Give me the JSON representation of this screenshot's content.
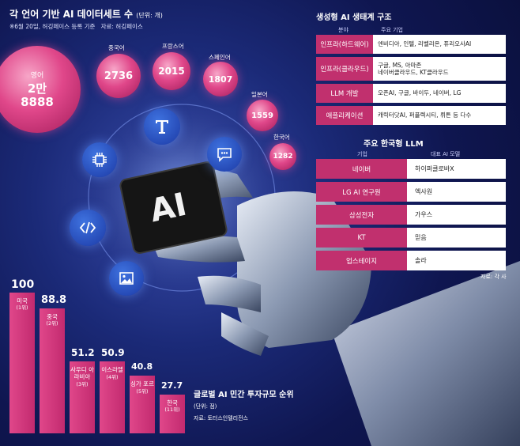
{
  "left_panel": {
    "title": "각 언어 기반 AI 데이터세트 수",
    "unit": "(단위: 개)",
    "note": "※6월 20일, 허깅페이스 등록 기준",
    "source": "자료: 허깅페이스",
    "bubbles": [
      {
        "label": "영어",
        "value": "2만\n8888"
      },
      {
        "label": "중국어",
        "value": "2736"
      },
      {
        "label": "프랑스어",
        "value": "2015"
      },
      {
        "label": "스페인어",
        "value": "1807"
      },
      {
        "label": "일본어",
        "value": "1559"
      },
      {
        "label": "한국어",
        "value": "1282"
      }
    ],
    "icons": [
      "text-icon",
      "chip-icon",
      "chat-icon",
      "code-icon",
      "image-icon"
    ],
    "ai_chip_label": "AI"
  },
  "structure_panel": {
    "title": "생성형 AI 생태계 구조",
    "col_field": "분야",
    "col_company": "주요 기업",
    "rows": [
      {
        "field": "인프라(하드웨어)",
        "companies": "엔비디아, 인텔, 리벨리온, 퓨리오사AI"
      },
      {
        "field": "인프라(클라우드)",
        "companies": "구글, MS, 아마존\n네이버클라우드, KT클라우드"
      },
      {
        "field": "LLM 개발",
        "companies": "오픈AI, 구글, 바이두, 네이버, LG"
      },
      {
        "field": "애플리케이션",
        "companies": "캐릭터닷AI, 퍼플렉시티, 뤼튼 등 다수"
      }
    ]
  },
  "llm_panel": {
    "title": "주요 한국형 LLM",
    "col_company": "기업",
    "col_model": "대표 AI 모델",
    "rows": [
      {
        "company": "네이버",
        "model": "하이퍼클로바X"
      },
      {
        "company": "LG AI 연구원",
        "model": "엑사원"
      },
      {
        "company": "삼성전자",
        "model": "가우스"
      },
      {
        "company": "KT",
        "model": "믿음"
      },
      {
        "company": "업스테이지",
        "model": "솔라"
      }
    ],
    "source": "자료: 각 사"
  },
  "chart_data": {
    "type": "bar",
    "title": "글로벌 AI 민간 투자규모 순위",
    "unit": "(단위: 점)",
    "source": "자료: 토터스인텔리전스",
    "categories": [
      "미국",
      "중국",
      "사우디 아라비아",
      "이스라엘",
      "싱가 포르",
      "한국"
    ],
    "ranks": [
      "(1위)",
      "(2위)",
      "(3위)",
      "(4위)",
      "(5위)",
      "(11위)"
    ],
    "values": [
      100,
      88.8,
      51.2,
      50.9,
      40.8,
      27.7
    ],
    "value_labels": [
      "100",
      "88.8",
      "51.2",
      "50.9",
      "40.8",
      "27.7"
    ],
    "ylim": [
      0,
      100
    ]
  }
}
